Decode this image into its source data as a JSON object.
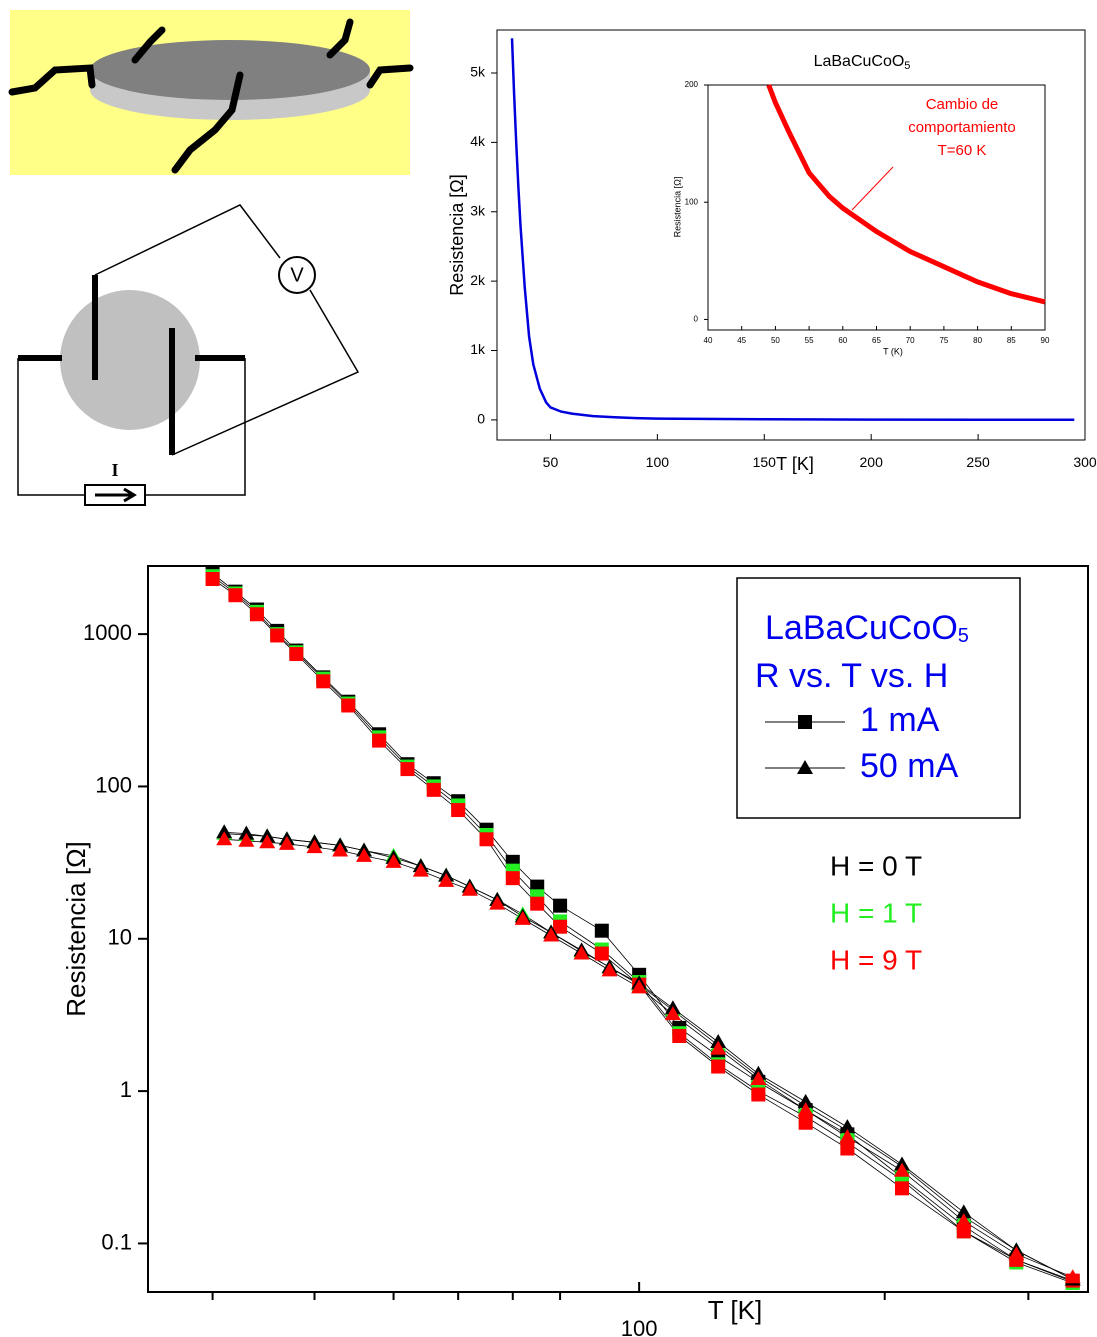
{
  "diagram": {
    "voltmeter_label": "V",
    "current_label": "I"
  },
  "chart_data": [
    {
      "type": "line",
      "title": "LaBaCuCoO",
      "title_subscript": "5",
      "xlabel": "T [K]",
      "ylabel": "Resistencia [Ω]",
      "color": "#0000dd",
      "xlim": [
        25,
        300
      ],
      "ylim": [
        -290,
        5620
      ],
      "xticks": [
        50,
        100,
        150,
        200,
        250,
        300
      ],
      "yticks": [
        0,
        {
          "value": 1000,
          "label": "1k"
        },
        {
          "value": 2000,
          "label": "2k"
        },
        {
          "value": 3000,
          "label": "3k"
        },
        {
          "value": 4000,
          "label": "4k"
        },
        {
          "value": 5000,
          "label": "5k"
        }
      ],
      "x": [
        32,
        33,
        34,
        35,
        36,
        38,
        40,
        42,
        45,
        48,
        50,
        55,
        60,
        70,
        80,
        90,
        100,
        150,
        200,
        250,
        295
      ],
      "values": [
        5500,
        4700,
        4000,
        3350,
        2800,
        1900,
        1200,
        800,
        450,
        250,
        180,
        120,
        90,
        55,
        38,
        25,
        18,
        8,
        4,
        2,
        1
      ]
    },
    {
      "type": "line",
      "xlabel": "T (K)",
      "ylabel": "Resistencia [Ω]",
      "color": "#ff0000",
      "xlim": [
        40,
        90
      ],
      "ylim": [
        -9,
        200
      ],
      "xticks": [
        40,
        45,
        50,
        55,
        60,
        65,
        70,
        75,
        80,
        85,
        90
      ],
      "yticks": [
        0,
        100,
        200
      ],
      "x": [
        49,
        50,
        52,
        55,
        58,
        60,
        65,
        70,
        75,
        80,
        85,
        90
      ],
      "values": [
        200,
        185,
        160,
        125,
        105,
        95,
        75,
        58,
        45,
        32,
        22,
        15
      ],
      "annotation": [
        "Cambio de",
        "comportamiento",
        "T=60 K"
      ]
    },
    {
      "type": "scatter",
      "xlabel": "T [K]",
      "ylabel": "Resistencia [Ω]",
      "log_x": true,
      "log_y": true,
      "xlim": [
        25,
        355
      ],
      "ylim": [
        0.048,
        2800
      ],
      "xticks": [
        100
      ],
      "xminor_ticks": [
        30,
        40,
        50,
        60,
        70,
        80,
        200,
        300
      ],
      "yticks": [
        0.1,
        1,
        10,
        100,
        1000
      ],
      "line_color": "#000000",
      "legend_title": "LaBaCuCoO",
      "legend_title_subscript": "5",
      "legend_subtitle": "R vs. T vs. H",
      "legend_color": "#0000ee",
      "markers": [
        {
          "name": "1 mA",
          "shape": "square"
        },
        {
          "name": "50 mA",
          "shape": "triangle"
        }
      ],
      "fields": [
        {
          "name": "H = 0 T",
          "color": "#000000"
        },
        {
          "name": "H = 1 T",
          "color": "#22ee22"
        },
        {
          "name": "H = 9 T",
          "color": "#ff0000"
        }
      ],
      "series": [
        {
          "marker": 0,
          "field": 0,
          "x": [
            30,
            32,
            34,
            36,
            38,
            41,
            44,
            48,
            52,
            56,
            60,
            65,
            70,
            75,
            80,
            90,
            100,
            112,
            125,
            140,
            160,
            180,
            210,
            250,
            290,
            340
          ],
          "values": [
            2500,
            1900,
            1450,
            1050,
            780,
            520,
            360,
            220,
            140,
            105,
            80,
            52,
            32,
            22,
            16.5,
            11.3,
            5.8,
            2.6,
            1.7,
            1.15,
            0.75,
            0.52,
            0.27,
            0.13,
            0.078,
            0.056
          ]
        },
        {
          "marker": 0,
          "field": 1,
          "x": [
            30,
            32,
            34,
            36,
            38,
            41,
            44,
            48,
            52,
            56,
            60,
            65,
            70,
            75,
            80,
            90,
            100,
            112,
            125,
            140,
            160,
            180,
            210,
            250,
            290,
            340
          ],
          "values": [
            2400,
            1850,
            1400,
            1000,
            760,
            510,
            350,
            210,
            135,
            100,
            75,
            48,
            28,
            19,
            13,
            8.5,
            5.2,
            2.4,
            1.5,
            1.0,
            0.68,
            0.46,
            0.26,
            0.12,
            0.075,
            0.055
          ]
        },
        {
          "marker": 0,
          "field": 2,
          "x": [
            30,
            32,
            34,
            36,
            38,
            41,
            44,
            48,
            52,
            56,
            60,
            65,
            70,
            75,
            80,
            90,
            100,
            112,
            125,
            140,
            160,
            180,
            210,
            250,
            290,
            340
          ],
          "values": [
            2300,
            1800,
            1350,
            980,
            740,
            490,
            340,
            200,
            130,
            95,
            70,
            45,
            25,
            17,
            12,
            8,
            5.0,
            2.3,
            1.45,
            0.95,
            0.62,
            0.42,
            0.23,
            0.12,
            0.078,
            0.057
          ]
        },
        {
          "marker": 1,
          "field": 1,
          "x": [
            31,
            33,
            35,
            37,
            40,
            43,
            46,
            50,
            54,
            58,
            62,
            67,
            72,
            78,
            85,
            92,
            100,
            110,
            125,
            140,
            160,
            180,
            210,
            250,
            290,
            340
          ],
          "values": [
            49,
            48,
            47,
            45,
            43,
            41,
            38,
            35,
            30,
            26,
            22,
            18,
            14.5,
            11,
            8.3,
            6.5,
            5.0,
            3.4,
            2.0,
            1.25,
            0.8,
            0.55,
            0.32,
            0.15,
            0.09,
            0.058
          ]
        },
        {
          "marker": 1,
          "field": 0,
          "x": [
            31,
            33,
            35,
            37,
            40,
            43,
            46,
            50,
            54,
            58,
            62,
            67,
            72,
            78,
            85,
            92,
            100,
            110,
            125,
            140,
            160,
            180,
            210,
            250,
            290,
            340
          ],
          "values": [
            50,
            49,
            47,
            45,
            43,
            41,
            38,
            34,
            30,
            26,
            22,
            18,
            14,
            11,
            8.4,
            6.5,
            5.1,
            3.5,
            2.1,
            1.3,
            0.85,
            0.58,
            0.33,
            0.16,
            0.09,
            0.058
          ]
        },
        {
          "marker": 1,
          "field": 2,
          "x": [
            31,
            33,
            35,
            37,
            40,
            43,
            46,
            50,
            54,
            58,
            62,
            67,
            72,
            78,
            85,
            92,
            100,
            110,
            125,
            140,
            160,
            180,
            210,
            250,
            290,
            340
          ],
          "values": [
            45,
            44,
            43,
            42,
            40,
            38,
            35,
            32,
            28,
            24,
            21,
            17,
            13.5,
            10.5,
            8,
            6.2,
            4.8,
            3.2,
            1.9,
            1.2,
            0.75,
            0.5,
            0.3,
            0.14,
            0.085,
            0.06
          ]
        }
      ]
    }
  ]
}
